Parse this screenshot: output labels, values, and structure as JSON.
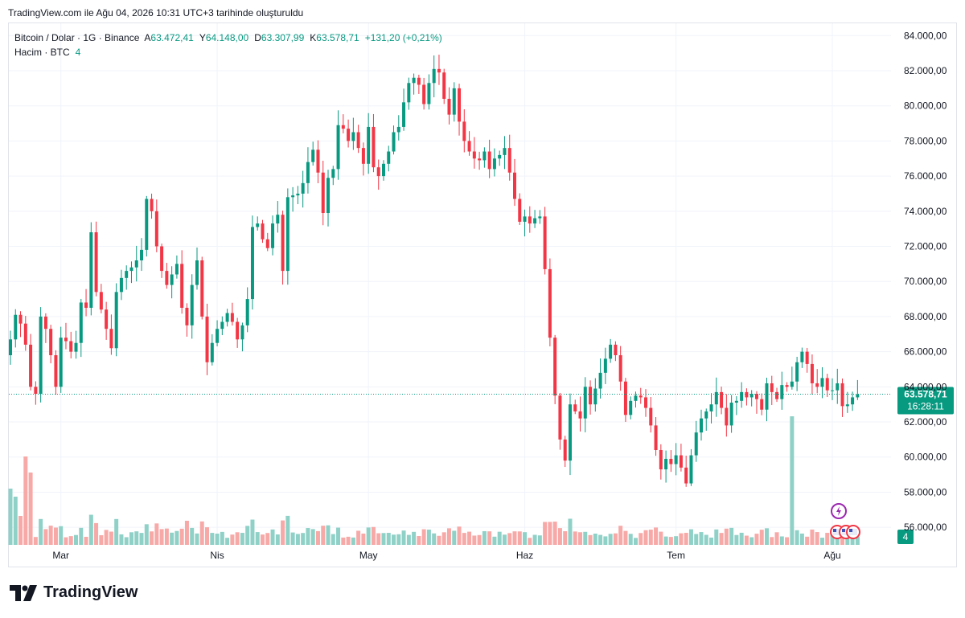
{
  "caption": "TradingView.com ile Ağu 04, 2026 10:31 UTC+3 tarihinde oluşturuldu",
  "brand": {
    "name": "TradingView"
  },
  "legend": {
    "symbol": "Bitcoin / Dolar · 1G · Binance",
    "open_label": "A",
    "open": "63.472,41",
    "high_label": "Y",
    "high": "64.148,00",
    "low_label": "D",
    "low": "63.307,99",
    "close_label": "K",
    "close": "63.578,71",
    "change": "+131,20 (+0,21%)",
    "volume_label": "Hacim · BTC",
    "volume_value": "4"
  },
  "price_tag": {
    "price": "63.578,71",
    "countdown": "16:28:11"
  },
  "volume_tag": "4",
  "colors": {
    "up": "#089981",
    "down": "#f23645",
    "vol_up": "#8fd1c7",
    "vol_down": "#f7a9a7",
    "last_line": "#089981",
    "grid": "#f0f3fa"
  },
  "chart_data": {
    "type": "candlestick",
    "title": "Bitcoin / Dolar · 1G · Binance",
    "ylim": [
      55000,
      84700
    ],
    "y_ticks": [
      {
        "v": 84000,
        "label": "84.000,00"
      },
      {
        "v": 82000,
        "label": "82.000,00"
      },
      {
        "v": 80000,
        "label": "80.000,00"
      },
      {
        "v": 78000,
        "label": "78.000,00"
      },
      {
        "v": 76000,
        "label": "76.000,00"
      },
      {
        "v": 74000,
        "label": "74.000,00"
      },
      {
        "v": 72000,
        "label": "72.000,00"
      },
      {
        "v": 70000,
        "label": "70.000,00"
      },
      {
        "v": 68000,
        "label": "68.000,00"
      },
      {
        "v": 66000,
        "label": "66.000,00"
      },
      {
        "v": 64000,
        "label": "64.000,00"
      },
      {
        "v": 62000,
        "label": "62.000,00"
      },
      {
        "v": 60000,
        "label": "60.000,00"
      },
      {
        "v": 58000,
        "label": "58.000,00"
      },
      {
        "v": 56000,
        "label": "56.000,00"
      }
    ],
    "x_ticks": [
      {
        "day": 10,
        "label": "Mar"
      },
      {
        "day": 41,
        "label": "Nis"
      },
      {
        "day": 71,
        "label": "May"
      },
      {
        "day": 102,
        "label": "Haz"
      },
      {
        "day": 132,
        "label": "Tem"
      },
      {
        "day": 163,
        "label": "Ağu"
      }
    ],
    "last_price": 63578.71,
    "closes": [
      66700,
      68100,
      67600,
      66400,
      64000,
      63600,
      68000,
      67300,
      65800,
      64000,
      66800,
      66600,
      66000,
      66500,
      68800,
      68500,
      72800,
      69400,
      68400,
      67300,
      66200,
      69400,
      70200,
      70600,
      70800,
      71200,
      71800,
      74700,
      74000,
      72000,
      70600,
      69800,
      70400,
      71000,
      68500,
      67500,
      69800,
      71200,
      68000,
      65400,
      66500,
      67300,
      67700,
      68200,
      67700,
      66700,
      67500,
      69000,
      73100,
      73300,
      72400,
      71900,
      73300,
      73800,
      70600,
      74800,
      74900,
      75000,
      75600,
      76800,
      77500,
      76200,
      73900,
      75900,
      76400,
      78900,
      78700,
      78000,
      78500,
      77600,
      76700,
      78800,
      76500,
      76000,
      76700,
      77400,
      78500,
      78800,
      80200,
      81300,
      81600,
      81200,
      80100,
      81300,
      82100,
      81900,
      80400,
      79500,
      81000,
      79100,
      78000,
      77400,
      77000,
      76900,
      77400,
      76400,
      77000,
      77200,
      77600,
      76200,
      74700,
      73400,
      73700,
      73300,
      73600,
      73700,
      70700,
      66800,
      63500,
      61000,
      59800,
      63000,
      62600,
      62200,
      64000,
      63000,
      63900,
      64800,
      65600,
      66400,
      65800,
      64300,
      62400,
      63200,
      63500,
      63400,
      62800,
      61800,
      60400,
      59300,
      59900,
      59600,
      60100,
      59400,
      58500,
      60100,
      61400,
      62200,
      62600,
      63000,
      63700,
      62800,
      61800,
      63100,
      63200,
      63700,
      63400,
      63600,
      63300,
      62700,
      64200,
      63700,
      63300,
      64100,
      64000,
      64300,
      65400,
      66000,
      65300,
      64200,
      64000,
      64500,
      63800,
      63800,
      64200,
      62900,
      63000,
      63400,
      63570
    ]
  }
}
